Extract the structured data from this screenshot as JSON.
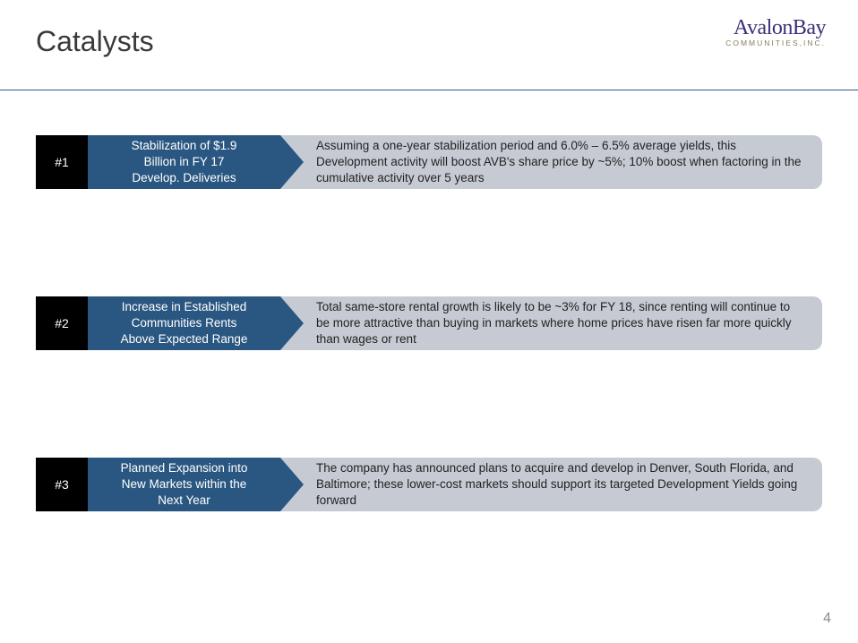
{
  "header": {
    "title": "Catalysts",
    "logo_main": "AvalonBay",
    "logo_sub": "COMMUNITIES,INC."
  },
  "catalysts": [
    {
      "num": "#1",
      "label_line1": "Stabilization of $1.9",
      "label_line2": "Billion in FY 17",
      "label_line3": "Develop. Deliveries",
      "desc": "Assuming a one-year stabilization period and 6.0% – 6.5% average yields, this Development activity will boost AVB's share price by ~5%; 10% boost when factoring in the cumulative activity over 5 years"
    },
    {
      "num": "#2",
      "label_line1": "Increase in Established",
      "label_line2": "Communities Rents",
      "label_line3": "Above Expected Range",
      "desc": "Total same-store rental growth is likely to be ~3% for FY 18, since renting will continue to be more attractive than buying in markets where home prices have risen far more quickly than wages or rent"
    },
    {
      "num": "#3",
      "label_line1": "Planned Expansion into",
      "label_line2": "New Markets within the",
      "label_line3": "Next Year",
      "desc": "The company has announced plans to acquire and develop in Denver, South Florida, and Baltimore; these lower-cost markets should support its targeted Development Yields going forward"
    }
  ],
  "page_number": "4",
  "colors": {
    "title_text": "#3a3a3a",
    "logo_main": "#3e2e7a",
    "logo_sub": "#8a7d5a",
    "divider": "#2c5a8a",
    "num_bg": "#000000",
    "label_bg": "#2a5781",
    "desc_bg": "#c6cbd3",
    "desc_text": "#222222",
    "page_num": "#8a8a8a"
  }
}
